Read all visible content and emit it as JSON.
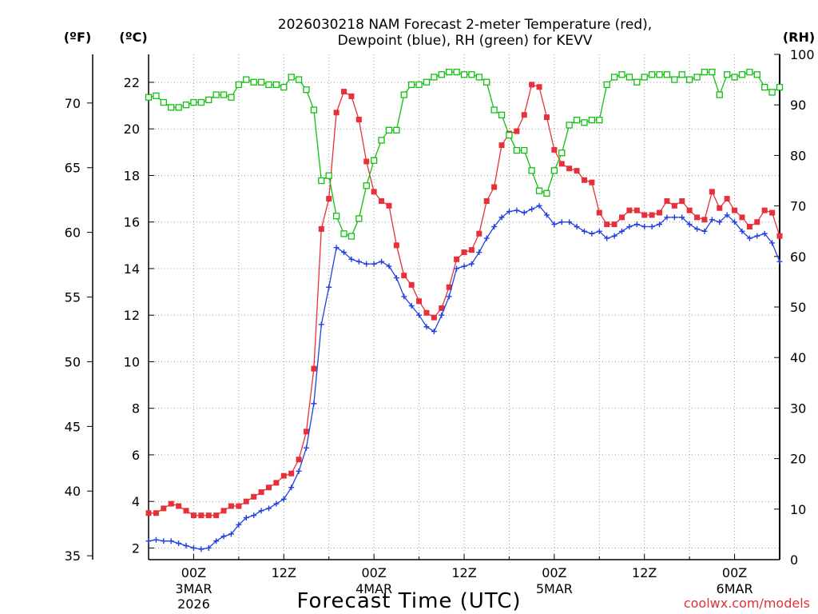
{
  "chart_data": {
    "type": "line",
    "title_line1": "2026030218 NAM Forecast 2-meter Temperature (red),",
    "title_line2": "Dewpoint (blue), RH (green) for KEVV",
    "xlabel": "Forecast Time (UTC)",
    "credit": "coolwx.com/models",
    "units": {
      "fahrenheit": "(ºF)",
      "celsius": "(ºC)",
      "rh": "(RH)"
    },
    "x_range_hours": [
      -6,
      78
    ],
    "celsius_range": [
      1.5,
      23.2
    ],
    "rh_range": [
      0,
      100
    ],
    "celsius_ticks": [
      2,
      4,
      6,
      8,
      10,
      12,
      14,
      16,
      18,
      20,
      22
    ],
    "fahrenheit_ticks": [
      35,
      40,
      45,
      50,
      55,
      60,
      65,
      70
    ],
    "rh_ticks": [
      0,
      10,
      20,
      30,
      40,
      50,
      60,
      70,
      80,
      90,
      100
    ],
    "x_ticks": [
      {
        "hour": 0,
        "label": "00Z",
        "sub1": "3MAR",
        "sub2": "2026"
      },
      {
        "hour": 12,
        "label": "12Z",
        "sub1": "",
        "sub2": ""
      },
      {
        "hour": 24,
        "label": "00Z",
        "sub1": "4MAR",
        "sub2": ""
      },
      {
        "hour": 36,
        "label": "12Z",
        "sub1": "",
        "sub2": ""
      },
      {
        "hour": 48,
        "label": "00Z",
        "sub1": "5MAR",
        "sub2": ""
      },
      {
        "hour": 60,
        "label": "12Z",
        "sub1": "",
        "sub2": ""
      },
      {
        "hour": 72,
        "label": "00Z",
        "sub1": "6MAR",
        "sub2": ""
      }
    ],
    "series": [
      {
        "name": "Temperature",
        "unit": "C",
        "color": "#e8303a",
        "marker": "filled-square",
        "points": [
          [
            -6,
            3.5
          ],
          [
            -5,
            3.5
          ],
          [
            -4,
            3.7
          ],
          [
            -3,
            3.9
          ],
          [
            -2,
            3.8
          ],
          [
            -1,
            3.6
          ],
          [
            0,
            3.4
          ],
          [
            1,
            3.4
          ],
          [
            2,
            3.4
          ],
          [
            3,
            3.4
          ],
          [
            4,
            3.6
          ],
          [
            5,
            3.8
          ],
          [
            6,
            3.8
          ],
          [
            7,
            4.0
          ],
          [
            8,
            4.2
          ],
          [
            9,
            4.4
          ],
          [
            10,
            4.6
          ],
          [
            11,
            4.8
          ],
          [
            12,
            5.1
          ],
          [
            13,
            5.2
          ],
          [
            14,
            5.8
          ],
          [
            15,
            7.0
          ],
          [
            16,
            9.7
          ],
          [
            17,
            15.7
          ],
          [
            18,
            17.0
          ],
          [
            19,
            20.7
          ],
          [
            20,
            21.6
          ],
          [
            21,
            21.4
          ],
          [
            22,
            20.4
          ],
          [
            23,
            18.6
          ],
          [
            24,
            17.3
          ],
          [
            25,
            16.9
          ],
          [
            26,
            16.7
          ],
          [
            27,
            15.0
          ],
          [
            28,
            13.7
          ],
          [
            29,
            13.3
          ],
          [
            30,
            12.6
          ],
          [
            31,
            12.1
          ],
          [
            32,
            11.9
          ],
          [
            33,
            12.3
          ],
          [
            34,
            13.2
          ],
          [
            35,
            14.4
          ],
          [
            36,
            14.7
          ],
          [
            37,
            14.8
          ],
          [
            38,
            15.5
          ],
          [
            39,
            16.9
          ],
          [
            40,
            17.5
          ],
          [
            41,
            19.3
          ],
          [
            42,
            19.8
          ],
          [
            43,
            19.9
          ],
          [
            44,
            20.6
          ],
          [
            45,
            21.9
          ],
          [
            46,
            21.8
          ],
          [
            47,
            20.5
          ],
          [
            48,
            19.1
          ],
          [
            49,
            18.5
          ],
          [
            50,
            18.3
          ],
          [
            51,
            18.2
          ],
          [
            52,
            17.8
          ],
          [
            53,
            17.7
          ],
          [
            54,
            16.4
          ],
          [
            55,
            15.9
          ],
          [
            56,
            15.9
          ],
          [
            57,
            16.2
          ],
          [
            58,
            16.5
          ],
          [
            59,
            16.5
          ],
          [
            60,
            16.3
          ],
          [
            61,
            16.3
          ],
          [
            62,
            16.4
          ],
          [
            63,
            16.9
          ],
          [
            64,
            16.7
          ],
          [
            65,
            16.9
          ],
          [
            66,
            16.5
          ],
          [
            67,
            16.2
          ],
          [
            68,
            16.1
          ],
          [
            69,
            17.3
          ],
          [
            70,
            16.6
          ],
          [
            71,
            17.0
          ],
          [
            72,
            16.5
          ],
          [
            73,
            16.2
          ],
          [
            74,
            15.8
          ],
          [
            75,
            16.0
          ],
          [
            76,
            16.5
          ],
          [
            77,
            16.4
          ],
          [
            78,
            15.4
          ]
        ]
      },
      {
        "name": "Dewpoint",
        "unit": "C",
        "color": "#2040e0",
        "marker": "plus",
        "points": [
          [
            -6,
            2.3
          ],
          [
            -5,
            2.35
          ],
          [
            -4,
            2.3
          ],
          [
            -3,
            2.3
          ],
          [
            -2,
            2.2
          ],
          [
            -1,
            2.1
          ],
          [
            0,
            2.0
          ],
          [
            1,
            1.95
          ],
          [
            2,
            2.0
          ],
          [
            3,
            2.3
          ],
          [
            4,
            2.5
          ],
          [
            5,
            2.6
          ],
          [
            6,
            3.0
          ],
          [
            7,
            3.3
          ],
          [
            8,
            3.4
          ],
          [
            9,
            3.6
          ],
          [
            10,
            3.7
          ],
          [
            11,
            3.9
          ],
          [
            12,
            4.1
          ],
          [
            13,
            4.6
          ],
          [
            14,
            5.3
          ],
          [
            15,
            6.3
          ],
          [
            16,
            8.2
          ],
          [
            17,
            11.6
          ],
          [
            18,
            13.2
          ],
          [
            19,
            14.9
          ],
          [
            20,
            14.7
          ],
          [
            21,
            14.4
          ],
          [
            22,
            14.3
          ],
          [
            23,
            14.2
          ],
          [
            24,
            14.2
          ],
          [
            25,
            14.3
          ],
          [
            26,
            14.1
          ],
          [
            27,
            13.6
          ],
          [
            28,
            12.8
          ],
          [
            29,
            12.4
          ],
          [
            30,
            12.0
          ],
          [
            31,
            11.5
          ],
          [
            32,
            11.3
          ],
          [
            33,
            12.0
          ],
          [
            34,
            12.8
          ],
          [
            35,
            14.0
          ],
          [
            36,
            14.1
          ],
          [
            37,
            14.2
          ],
          [
            38,
            14.7
          ],
          [
            39,
            15.3
          ],
          [
            40,
            15.8
          ],
          [
            41,
            16.2
          ],
          [
            42,
            16.45
          ],
          [
            43,
            16.5
          ],
          [
            44,
            16.4
          ],
          [
            45,
            16.55
          ],
          [
            46,
            16.7
          ],
          [
            47,
            16.3
          ],
          [
            48,
            15.9
          ],
          [
            49,
            16.0
          ],
          [
            50,
            16.0
          ],
          [
            51,
            15.8
          ],
          [
            52,
            15.6
          ],
          [
            53,
            15.5
          ],
          [
            54,
            15.6
          ],
          [
            55,
            15.3
          ],
          [
            56,
            15.4
          ],
          [
            57,
            15.6
          ],
          [
            58,
            15.8
          ],
          [
            59,
            15.9
          ],
          [
            60,
            15.8
          ],
          [
            61,
            15.8
          ],
          [
            62,
            15.9
          ],
          [
            63,
            16.2
          ],
          [
            64,
            16.2
          ],
          [
            65,
            16.2
          ],
          [
            66,
            15.9
          ],
          [
            67,
            15.7
          ],
          [
            68,
            15.6
          ],
          [
            69,
            16.1
          ],
          [
            70,
            16.0
          ],
          [
            71,
            16.3
          ],
          [
            72,
            16.0
          ],
          [
            73,
            15.6
          ],
          [
            74,
            15.3
          ],
          [
            75,
            15.4
          ],
          [
            76,
            15.5
          ],
          [
            77,
            15.1
          ],
          [
            78,
            14.3
          ]
        ]
      },
      {
        "name": "RH",
        "unit": "%",
        "color": "#10c010",
        "marker": "open-square",
        "points": [
          [
            -6,
            91.5
          ],
          [
            -5,
            91.8
          ],
          [
            -4,
            90.5
          ],
          [
            -3,
            89.5
          ],
          [
            -2,
            89.5
          ],
          [
            -1,
            90
          ],
          [
            0,
            90.5
          ],
          [
            1,
            90.5
          ],
          [
            2,
            91
          ],
          [
            3,
            92
          ],
          [
            4,
            92
          ],
          [
            5,
            91.5
          ],
          [
            6,
            94
          ],
          [
            7,
            95
          ],
          [
            8,
            94.5
          ],
          [
            9,
            94.5
          ],
          [
            10,
            94
          ],
          [
            11,
            94
          ],
          [
            12,
            93.5
          ],
          [
            13,
            95.5
          ],
          [
            14,
            95
          ],
          [
            15,
            93
          ],
          [
            16,
            89
          ],
          [
            17,
            75
          ],
          [
            18,
            76
          ],
          [
            19,
            68
          ],
          [
            20,
            64.5
          ],
          [
            21,
            64
          ],
          [
            22,
            67.5
          ],
          [
            23,
            74
          ],
          [
            24,
            79
          ],
          [
            25,
            83
          ],
          [
            26,
            85
          ],
          [
            27,
            85
          ],
          [
            28,
            92
          ],
          [
            29,
            94
          ],
          [
            30,
            94
          ],
          [
            31,
            94.5
          ],
          [
            32,
            95.5
          ],
          [
            33,
            96
          ],
          [
            34,
            96.5
          ],
          [
            35,
            96.5
          ],
          [
            36,
            96
          ],
          [
            37,
            96
          ],
          [
            38,
            95.5
          ],
          [
            39,
            94.5
          ],
          [
            40,
            89
          ],
          [
            41,
            88
          ],
          [
            42,
            84
          ],
          [
            43,
            81
          ],
          [
            44,
            81
          ],
          [
            45,
            77
          ],
          [
            46,
            73
          ],
          [
            47,
            72.5
          ],
          [
            48,
            77
          ],
          [
            49,
            80.5
          ],
          [
            50,
            86
          ],
          [
            51,
            87
          ],
          [
            52,
            86.5
          ],
          [
            53,
            87
          ],
          [
            54,
            87
          ],
          [
            55,
            94
          ],
          [
            56,
            95.5
          ],
          [
            57,
            96
          ],
          [
            58,
            95.5
          ],
          [
            59,
            94.5
          ],
          [
            60,
            95.5
          ],
          [
            61,
            96
          ],
          [
            62,
            96
          ],
          [
            63,
            96
          ],
          [
            64,
            95
          ],
          [
            65,
            96
          ],
          [
            66,
            95
          ],
          [
            67,
            95.5
          ],
          [
            68,
            96.5
          ],
          [
            69,
            96.5
          ],
          [
            70,
            92
          ],
          [
            71,
            96
          ],
          [
            72,
            95.5
          ],
          [
            73,
            96
          ],
          [
            74,
            96.5
          ],
          [
            75,
            96
          ],
          [
            76,
            93.5
          ],
          [
            77,
            92.5
          ],
          [
            78,
            93.5
          ]
        ]
      }
    ]
  }
}
